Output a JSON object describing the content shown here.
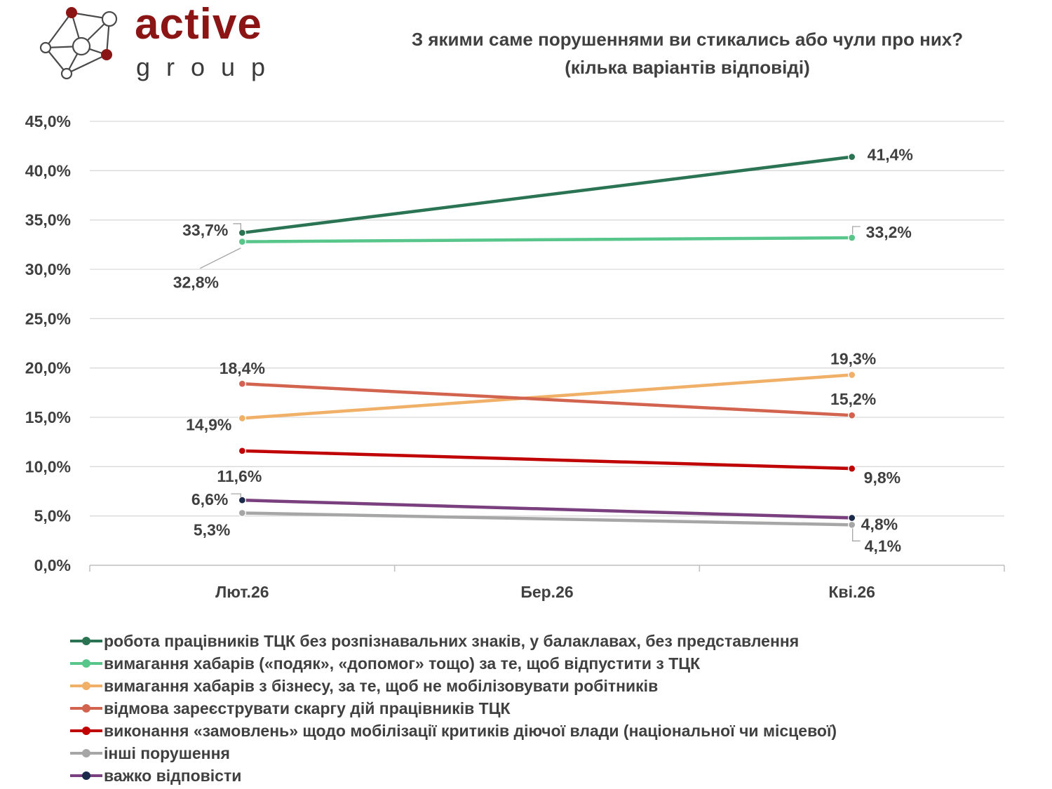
{
  "brand": {
    "name": "active",
    "subtitle": "group"
  },
  "title": {
    "line1": "З якими саме порушеннями ви стикались або чули про них?",
    "line2": "(кілька варіантів відповіді)"
  },
  "chart_data": {
    "type": "line",
    "categories": [
      "Лют.26",
      "Бер.26",
      "Кві.26"
    ],
    "ylim": [
      0,
      45
    ],
    "ytick_labels": [
      "0,0%",
      "5,0%",
      "10,0%",
      "15,0%",
      "20,0%",
      "25,0%",
      "30,0%",
      "35,0%",
      "40,0%",
      "45,0%"
    ],
    "grid": true,
    "legend_position": "bottom",
    "series": [
      {
        "name": "робота працівників ТЦК без розпізнавальних знаків, у балаклавах, без представлення",
        "color": "#2a7353",
        "marker": "#2a7353",
        "points": [
          {
            "x": "Лют.26",
            "y": 33.7,
            "label": "33,7%"
          },
          {
            "x": "Кві.26",
            "y": 41.4,
            "label": "41,4%"
          }
        ]
      },
      {
        "name": "вимагання хабарів («подяк», «допомог» тощо) за те, щоб відпустити з ТЦК",
        "color": "#58c68a",
        "marker": "#58c68a",
        "points": [
          {
            "x": "Лют.26",
            "y": 32.8,
            "label": "32,8%"
          },
          {
            "x": "Кві.26",
            "y": 33.2,
            "label": "33,2%"
          }
        ]
      },
      {
        "name": "вимагання хабарів з бізнесу, за те, щоб не мобілізовувати робітників",
        "color": "#f0b068",
        "marker": "#f0b068",
        "points": [
          {
            "x": "Лют.26",
            "y": 14.9,
            "label": "14,9%"
          },
          {
            "x": "Кві.26",
            "y": 19.3,
            "label": "19,3%"
          }
        ]
      },
      {
        "name": "відмова зареєструвати скаргу дій працівників ТЦК",
        "color": "#d2644f",
        "marker": "#d2644f",
        "points": [
          {
            "x": "Лют.26",
            "y": 18.4,
            "label": "18,4%"
          },
          {
            "x": "Кві.26",
            "y": 15.2,
            "label": "15,2%"
          }
        ]
      },
      {
        "name": "виконання «замовлень» щодо мобілізації критиків діючої влади (національної чи місцевої)",
        "color": "#c00000",
        "marker": "#c00000",
        "points": [
          {
            "x": "Лют.26",
            "y": 11.6,
            "label": "11,6%"
          },
          {
            "x": "Кві.26",
            "y": 9.8,
            "label": "9,8%"
          }
        ]
      },
      {
        "name": "інші порушення",
        "color": "#a6a6a6",
        "marker": "#a6a6a6",
        "points": [
          {
            "x": "Лют.26",
            "y": 5.3,
            "label": "5,3%"
          },
          {
            "x": "Кві.26",
            "y": 4.1,
            "label": "4,1%"
          }
        ]
      },
      {
        "name": "важко відповісти",
        "color": "#7a3f7e",
        "marker": "#1b2a4a",
        "points": [
          {
            "x": "Лют.26",
            "y": 6.6,
            "label": "6,6%"
          },
          {
            "x": "Кві.26",
            "y": 4.8,
            "label": "4,8%"
          }
        ]
      }
    ]
  }
}
